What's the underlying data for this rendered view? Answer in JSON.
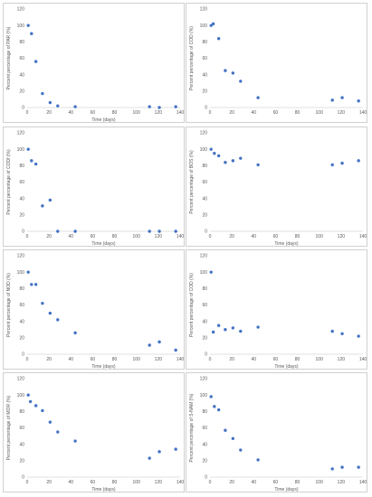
{
  "style": {
    "point_color": "#4472c4",
    "axis_color": "#d9d9d9",
    "text_color": "#595959"
  },
  "chart_data": [
    {
      "type": "scatter",
      "xlabel": "Time (days)",
      "ylabel": "Percent percentage of PAR (%)",
      "xlim": [
        0,
        140
      ],
      "ylim": [
        0,
        120
      ],
      "xticks": [
        0,
        20,
        40,
        60,
        80,
        100,
        120,
        140
      ],
      "yticks": [
        0,
        20,
        40,
        60,
        80,
        100,
        120
      ],
      "grid": false,
      "x": [
        1,
        4,
        8,
        14,
        21,
        28,
        44,
        112,
        121,
        136
      ],
      "y": [
        100,
        90,
        56,
        17,
        6,
        2,
        1,
        1,
        0,
        1
      ]
    },
    {
      "type": "scatter",
      "xlabel": "",
      "ylabel": "Percent percentage of COD (%)",
      "xlim": [
        0,
        140
      ],
      "ylim": [
        0,
        120
      ],
      "xticks": [
        0,
        20,
        40,
        60,
        80,
        100,
        120,
        140
      ],
      "yticks": [
        0,
        20,
        40,
        60,
        80,
        100,
        120
      ],
      "grid": false,
      "x": [
        1,
        3,
        8,
        14,
        21,
        28,
        44,
        112,
        121,
        136
      ],
      "y": [
        100,
        102,
        84,
        45,
        42,
        32,
        12,
        9,
        12,
        8
      ]
    },
    {
      "type": "scatter",
      "xlabel": "Time (days)",
      "ylabel": "Percent percentage of CODf (%)",
      "xlim": [
        0,
        140
      ],
      "ylim": [
        0,
        120
      ],
      "xticks": [
        0,
        20,
        40,
        60,
        80,
        100,
        120,
        140
      ],
      "yticks": [
        0,
        20,
        40,
        60,
        80,
        100,
        120
      ],
      "grid": false,
      "x": [
        1,
        4,
        8,
        14,
        21,
        28,
        44,
        112,
        121,
        136
      ],
      "y": [
        100,
        86,
        82,
        31,
        38,
        0,
        0,
        0,
        0,
        0
      ]
    },
    {
      "type": "scatter",
      "xlabel": "Time (days)",
      "ylabel": "Percent percentage of BOS (%)",
      "xlim": [
        0,
        140
      ],
      "ylim": [
        0,
        120
      ],
      "xticks": [
        0,
        20,
        40,
        60,
        80,
        100,
        120,
        140
      ],
      "yticks": [
        0,
        20,
        40,
        60,
        80,
        100,
        120
      ],
      "grid": false,
      "x": [
        1,
        4,
        8,
        14,
        21,
        28,
        44,
        112,
        121,
        136
      ],
      "y": [
        100,
        95,
        92,
        84,
        86,
        89,
        81,
        81,
        83,
        86
      ]
    },
    {
      "type": "scatter",
      "xlabel": "Time (days)",
      "ylabel": "Percent percentage of NOD (%)",
      "xlim": [
        0,
        140
      ],
      "ylim": [
        0,
        120
      ],
      "xticks": [
        0,
        20,
        40,
        60,
        80,
        100,
        120,
        140
      ],
      "yticks": [
        0,
        20,
        40,
        60,
        80,
        100,
        120
      ],
      "grid": false,
      "x": [
        1,
        4,
        8,
        14,
        21,
        28,
        44,
        112,
        121,
        136
      ],
      "y": [
        100,
        85,
        85,
        62,
        50,
        42,
        26,
        11,
        15,
        5
      ]
    },
    {
      "type": "scatter",
      "xlabel": "Time (days)",
      "ylabel": "Percent percentage of COD (%)",
      "xlim": [
        0,
        140
      ],
      "ylim": [
        0,
        120
      ],
      "xticks": [
        0,
        20,
        40,
        60,
        80,
        100,
        120,
        140
      ],
      "yticks": [
        0,
        20,
        40,
        60,
        80,
        100,
        120
      ],
      "grid": false,
      "x": [
        1,
        3,
        8,
        14,
        21,
        28,
        44,
        112,
        121,
        136
      ],
      "y": [
        100,
        27,
        35,
        30,
        32,
        28,
        33,
        28,
        25,
        22
      ]
    },
    {
      "type": "scatter",
      "xlabel": "Time (days)",
      "ylabel": "Percent percentage of MOR (%)",
      "xlim": [
        0,
        140
      ],
      "ylim": [
        0,
        120
      ],
      "xticks": [
        0,
        20,
        40,
        60,
        80,
        100,
        120,
        140
      ],
      "yticks": [
        0,
        20,
        40,
        60,
        80,
        100,
        120
      ],
      "grid": false,
      "x": [
        1,
        3,
        8,
        14,
        21,
        28,
        44,
        112,
        121,
        136
      ],
      "y": [
        100,
        92,
        87,
        81,
        67,
        55,
        44,
        23,
        31,
        34
      ]
    },
    {
      "type": "scatter",
      "xlabel": "Time (days)",
      "ylabel": "Percent percentage of S-NAM (%)",
      "xlim": [
        0,
        140
      ],
      "ylim": [
        0,
        120
      ],
      "xticks": [
        0,
        20,
        40,
        60,
        80,
        100,
        120,
        140
      ],
      "yticks": [
        0,
        20,
        40,
        60,
        80,
        100,
        120
      ],
      "grid": false,
      "x": [
        1,
        4,
        8,
        14,
        21,
        28,
        44,
        112,
        121,
        136
      ],
      "y": [
        98,
        86,
        82,
        57,
        47,
        33,
        21,
        10,
        12,
        12
      ]
    }
  ]
}
